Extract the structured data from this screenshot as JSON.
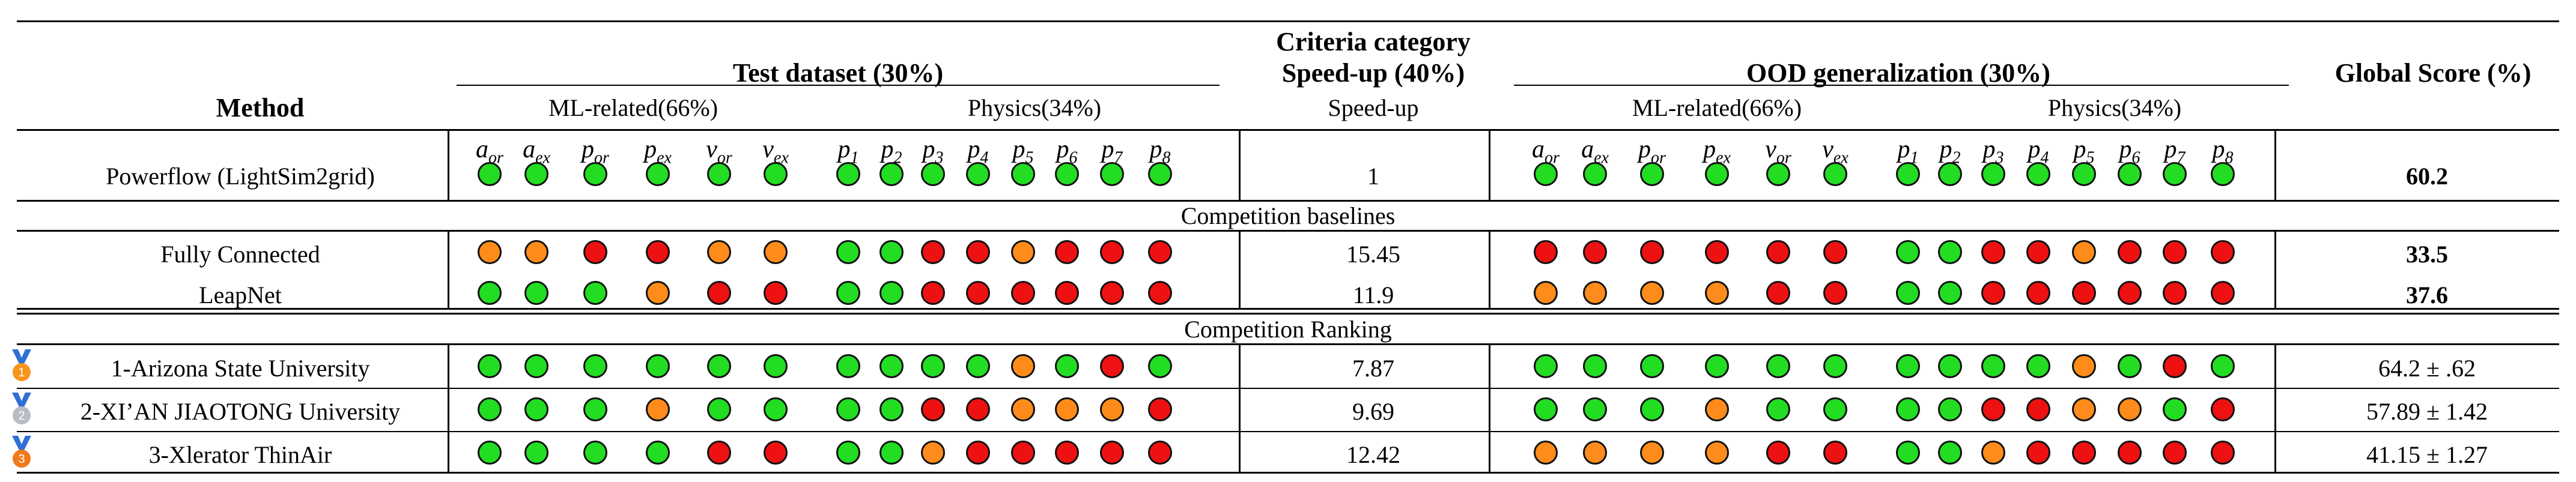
{
  "colors": {
    "green": "#22dd22",
    "orange": "#ff8c1a",
    "red": "#ee1111"
  },
  "header": {
    "criteria_category": "Criteria category",
    "method": "Method",
    "test_dataset": "Test dataset (30%)",
    "speedup_group": "Speed-up (40%)",
    "ood": "OOD generalization (30%)",
    "global_score": "Global Score (%)",
    "ml_related": "ML-related(66%)",
    "physics": "Physics(34%)",
    "speedup_sub": "Speed-up",
    "ml_vars": [
      {
        "base": "a",
        "sub": "or"
      },
      {
        "base": "a",
        "sub": "ex"
      },
      {
        "base": "p",
        "sub": "or"
      },
      {
        "base": "p",
        "sub": "ex"
      },
      {
        "base": "v",
        "sub": "or"
      },
      {
        "base": "v",
        "sub": "ex"
      }
    ],
    "phys_vars": [
      {
        "base": "p",
        "sub": "1"
      },
      {
        "base": "p",
        "sub": "2"
      },
      {
        "base": "p",
        "sub": "3"
      },
      {
        "base": "p",
        "sub": "4"
      },
      {
        "base": "p",
        "sub": "5"
      },
      {
        "base": "p",
        "sub": "6"
      },
      {
        "base": "p",
        "sub": "7"
      },
      {
        "base": "p",
        "sub": "8"
      }
    ]
  },
  "sections": {
    "baselines": "Competition baselines",
    "ranking": "Competition Ranking"
  },
  "rows": [
    {
      "method": "Powerflow (LightSim2grid)",
      "test_ml": [
        "g",
        "g",
        "g",
        "g",
        "g",
        "g"
      ],
      "test_phys": [
        "g",
        "g",
        "g",
        "g",
        "g",
        "g",
        "g",
        "g"
      ],
      "speedup": "1",
      "ood_ml": [
        "g",
        "g",
        "g",
        "g",
        "g",
        "g"
      ],
      "ood_phys": [
        "g",
        "g",
        "g",
        "g",
        "g",
        "g",
        "g",
        "g"
      ],
      "score": "60.2",
      "score_bold": true
    },
    {
      "method": "Fully Connected",
      "test_ml": [
        "o",
        "o",
        "r",
        "r",
        "o",
        "o"
      ],
      "test_phys": [
        "g",
        "g",
        "r",
        "r",
        "o",
        "r",
        "r",
        "r"
      ],
      "speedup": "15.45",
      "ood_ml": [
        "r",
        "r",
        "r",
        "r",
        "r",
        "r"
      ],
      "ood_phys": [
        "g",
        "g",
        "r",
        "r",
        "o",
        "r",
        "r",
        "r"
      ],
      "score": "33.5",
      "score_bold": true
    },
    {
      "method": "LeapNet",
      "test_ml": [
        "g",
        "g",
        "g",
        "o",
        "r",
        "r"
      ],
      "test_phys": [
        "g",
        "g",
        "r",
        "r",
        "r",
        "r",
        "r",
        "r"
      ],
      "speedup": "11.9",
      "ood_ml": [
        "o",
        "o",
        "o",
        "o",
        "r",
        "r"
      ],
      "ood_phys": [
        "g",
        "g",
        "r",
        "r",
        "r",
        "r",
        "r",
        "r"
      ],
      "score": "37.6",
      "score_bold": true
    },
    {
      "method": "1-Arizona State University",
      "medal": "1",
      "test_ml": [
        "g",
        "g",
        "g",
        "g",
        "g",
        "g"
      ],
      "test_phys": [
        "g",
        "g",
        "g",
        "g",
        "o",
        "g",
        "r",
        "g"
      ],
      "speedup": "7.87",
      "ood_ml": [
        "g",
        "g",
        "g",
        "g",
        "g",
        "g"
      ],
      "ood_phys": [
        "g",
        "g",
        "g",
        "g",
        "o",
        "g",
        "r",
        "g"
      ],
      "score": "64.2 ± .62",
      "score_bold": false
    },
    {
      "method": "2-XI’AN JIAOTONG University",
      "medal": "2",
      "test_ml": [
        "g",
        "g",
        "g",
        "o",
        "g",
        "g"
      ],
      "test_phys": [
        "g",
        "g",
        "r",
        "r",
        "o",
        "o",
        "o",
        "r"
      ],
      "speedup": "9.69",
      "ood_ml": [
        "g",
        "g",
        "g",
        "o",
        "g",
        "g"
      ],
      "ood_phys": [
        "g",
        "g",
        "r",
        "r",
        "o",
        "o",
        "g",
        "r"
      ],
      "score": "57.89 ± 1.42",
      "score_bold": false
    },
    {
      "method": "3-Xlerator ThinAir",
      "medal": "3",
      "test_ml": [
        "g",
        "g",
        "g",
        "g",
        "r",
        "r"
      ],
      "test_phys": [
        "g",
        "g",
        "o",
        "r",
        "r",
        "r",
        "r",
        "r"
      ],
      "speedup": "12.42",
      "ood_ml": [
        "o",
        "o",
        "o",
        "o",
        "r",
        "r"
      ],
      "ood_phys": [
        "g",
        "g",
        "o",
        "r",
        "r",
        "r",
        "r",
        "r"
      ],
      "score": "41.15 ± 1.27",
      "score_bold": false
    }
  ]
}
